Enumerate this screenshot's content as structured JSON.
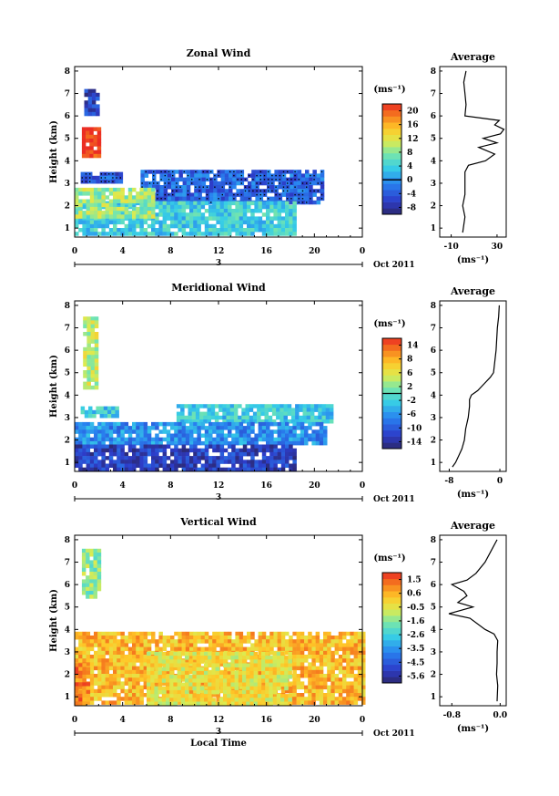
{
  "chart_data": [
    {
      "type": "heatmap",
      "title": "Zonal Wind",
      "ylabel": "Height (km)",
      "xlabel": "",
      "xticks": [
        "0",
        "4",
        "8",
        "12",
        "16",
        "20",
        "0"
      ],
      "yticks": [
        "1",
        "2",
        "3",
        "4",
        "5",
        "6",
        "7",
        "8"
      ],
      "xlim": [
        0,
        24
      ],
      "ylim": [
        0.6,
        8.2
      ],
      "date_label": "3",
      "month_label": "Oct 2011",
      "colorbar": {
        "unit": "(ms⁻¹)",
        "ticks": [
          "20",
          "16",
          "12",
          "8",
          "4",
          "0",
          "-4",
          "-8"
        ],
        "min": -10,
        "max": 22,
        "zero_line": 0
      },
      "stipple_negative": true,
      "regions": [
        {
          "x0": 0.8,
          "x1": 2.0,
          "y0": 6.1,
          "y1": 7.2,
          "value": -6
        },
        {
          "x0": 0.6,
          "x1": 2.0,
          "y0": 4.3,
          "y1": 5.5,
          "value": 22
        },
        {
          "x0": 0.5,
          "x1": 3.8,
          "y0": 3.0,
          "y1": 3.5,
          "value": -4
        },
        {
          "x0": 5.5,
          "x1": 20.8,
          "y0": 2.2,
          "y1": 3.6,
          "value": -3
        },
        {
          "x0": 0.0,
          "x1": 18.5,
          "y0": 0.7,
          "y1": 2.2,
          "value": 4
        },
        {
          "x0": 0.0,
          "x1": 6.5,
          "y0": 1.6,
          "y1": 2.8,
          "value": 9
        }
      ],
      "average_profile": {
        "title": "Average",
        "xlabel": "(ms⁻¹)",
        "xticks": [
          "-10",
          "30"
        ],
        "xlim": [
          -20,
          38
        ],
        "y": [
          0.8,
          1.5,
          2.0,
          2.5,
          3.0,
          3.5,
          3.8,
          4.0,
          4.3,
          4.6,
          4.8,
          5.0,
          5.2,
          5.4,
          5.6,
          5.8,
          6.0,
          6.5,
          7.0,
          7.5,
          8.0
        ],
        "x": [
          0,
          2,
          0,
          2,
          2,
          2,
          5,
          20,
          28,
          14,
          30,
          18,
          33,
          36,
          28,
          32,
          2,
          3,
          2,
          1,
          3
        ]
      }
    },
    {
      "type": "heatmap",
      "title": "Meridional Wind",
      "ylabel": "Height (km)",
      "xlabel": "",
      "xticks": [
        "0",
        "4",
        "8",
        "12",
        "16",
        "20",
        "0"
      ],
      "yticks": [
        "1",
        "2",
        "3",
        "4",
        "5",
        "6",
        "7",
        "8"
      ],
      "xlim": [
        0,
        24
      ],
      "ylim": [
        0.6,
        8.2
      ],
      "date_label": "3",
      "month_label": "Oct 2011",
      "colorbar": {
        "unit": "(ms⁻¹)",
        "ticks": [
          "14",
          "8",
          "6",
          "2",
          "-2",
          "-6",
          "-10",
          "-14"
        ],
        "min": -16,
        "max": 17,
        "zero_line": 0
      },
      "stipple_negative": false,
      "regions": [
        {
          "x0": 0.7,
          "x1": 1.9,
          "y0": 4.3,
          "y1": 7.5,
          "value": 5
        },
        {
          "x0": 0.5,
          "x1": 3.5,
          "y0": 3.0,
          "y1": 3.5,
          "value": -2
        },
        {
          "x0": 8.5,
          "x1": 21.5,
          "y0": 2.8,
          "y1": 3.6,
          "value": -2
        },
        {
          "x0": 0.0,
          "x1": 21.0,
          "y0": 1.8,
          "y1": 2.8,
          "value": -6
        },
        {
          "x0": 0.0,
          "x1": 18.5,
          "y0": 0.7,
          "y1": 1.8,
          "value": -12
        }
      ],
      "average_profile": {
        "title": "Average",
        "xlabel": "(ms⁻¹)",
        "xticks": [
          "-8",
          "0"
        ],
        "xlim": [
          -9.5,
          1
        ],
        "y": [
          0.8,
          1.0,
          1.3,
          1.6,
          2.0,
          2.5,
          3.0,
          3.5,
          3.8,
          4.0,
          4.2,
          4.5,
          4.8,
          5.0,
          5.5,
          6.0,
          6.5,
          7.0,
          7.5,
          8.0
        ],
        "x": [
          -7.5,
          -7.0,
          -6.5,
          -6.0,
          -5.6,
          -5.4,
          -5.0,
          -4.8,
          -4.8,
          -4.5,
          -3.5,
          -2.5,
          -1.5,
          -1.0,
          -0.8,
          -0.6,
          -0.5,
          -0.4,
          -0.2,
          -0.1
        ]
      }
    },
    {
      "type": "heatmap",
      "title": "Vertical Wind",
      "ylabel": "Height (km)",
      "xlabel": "Local Time",
      "xticks": [
        "0",
        "4",
        "8",
        "12",
        "16",
        "20",
        "0"
      ],
      "yticks": [
        "1",
        "2",
        "3",
        "4",
        "5",
        "6",
        "7",
        "8"
      ],
      "xlim": [
        0,
        24
      ],
      "ylim": [
        0.6,
        8.2
      ],
      "date_label": "3",
      "month_label": "Oct 2011",
      "colorbar": {
        "unit": "(ms⁻¹)",
        "ticks": [
          "1.5",
          "0.6",
          "-0.5",
          "-1.6",
          "-2.6",
          "-3.5",
          "-4.5",
          "-5.6"
        ],
        "min": -6.2,
        "max": 2.0,
        "zero_line": null
      },
      "stipple_negative": false,
      "regions": [
        {
          "x0": 0.6,
          "x1": 1.9,
          "y0": 5.5,
          "y1": 7.6,
          "value": -1.5
        },
        {
          "x0": 0.0,
          "x1": 24.0,
          "y0": 0.7,
          "y1": 3.9,
          "value": 0.3
        },
        {
          "x0": 6.0,
          "x1": 18.0,
          "y0": 0.7,
          "y1": 3.0,
          "value": -0.4
        },
        {
          "x0": 0.0,
          "x1": 1.0,
          "y0": 0.7,
          "y1": 2.5,
          "value": 1.0
        }
      ],
      "average_profile": {
        "title": "Average",
        "xlabel": "(ms⁻¹)",
        "xticks": [
          "-0.8",
          "0.0"
        ],
        "xlim": [
          -1.0,
          0.1
        ],
        "y": [
          0.8,
          1.5,
          2.0,
          2.5,
          3.0,
          3.5,
          3.8,
          4.0,
          4.5,
          4.7,
          5.0,
          5.2,
          5.5,
          5.7,
          6.0,
          6.2,
          6.5,
          7.0,
          7.5,
          8.0
        ],
        "x": [
          -0.05,
          -0.04,
          -0.06,
          -0.05,
          -0.05,
          -0.04,
          -0.1,
          -0.25,
          -0.5,
          -0.85,
          -0.45,
          -0.7,
          -0.55,
          -0.6,
          -0.8,
          -0.55,
          -0.4,
          -0.25,
          -0.15,
          -0.05
        ]
      }
    }
  ]
}
